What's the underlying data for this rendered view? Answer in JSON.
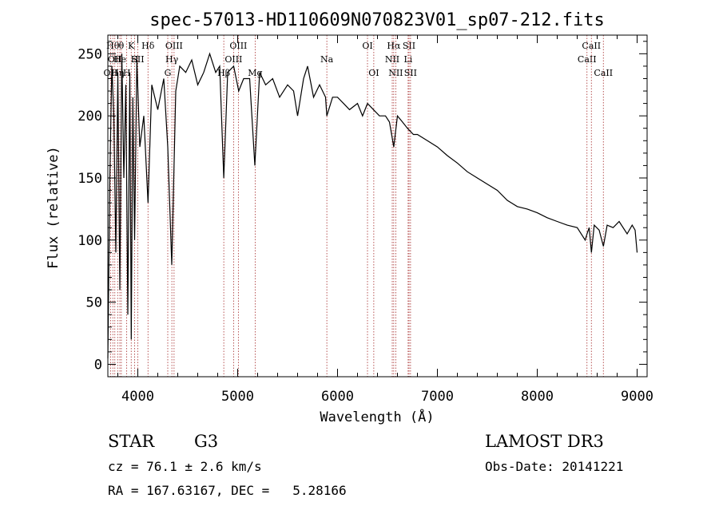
{
  "chart_data": {
    "type": "line",
    "title": "spec-57013-HD110609N070823V01_sp07-212.fits",
    "xlabel": "Wavelength (Å)",
    "ylabel": "Flux (relative)",
    "xlim": [
      3700,
      9100
    ],
    "ylim": [
      -10,
      265
    ],
    "xticks": [
      4000,
      5000,
      6000,
      7000,
      8000,
      9000
    ],
    "yticks": [
      0,
      50,
      100,
      150,
      200,
      250
    ],
    "grid": false,
    "series": [
      {
        "name": "flux",
        "x": [
          3700,
          3720,
          3740,
          3760,
          3780,
          3800,
          3820,
          3840,
          3860,
          3880,
          3900,
          3920,
          3934,
          3950,
          3968,
          3990,
          4020,
          4060,
          4102,
          4140,
          4200,
          4260,
          4300,
          4340,
          4380,
          4420,
          4480,
          4540,
          4600,
          4660,
          4720,
          4780,
          4820,
          4861,
          4900,
          4960,
          5010,
          5060,
          5120,
          5172,
          5220,
          5280,
          5350,
          5420,
          5500,
          5560,
          5600,
          5660,
          5700,
          5760,
          5820,
          5880,
          5893,
          5950,
          6000,
          6060,
          6120,
          6200,
          6250,
          6300,
          6360,
          6420,
          6480,
          6520,
          6563,
          6600,
          6650,
          6700,
          6760,
          6800,
          6900,
          7000,
          7100,
          7200,
          7300,
          7400,
          7500,
          7600,
          7700,
          7800,
          7900,
          8000,
          8100,
          8200,
          8300,
          8400,
          8480,
          8498,
          8520,
          8542,
          8570,
          8620,
          8662,
          8700,
          8760,
          8820,
          8900,
          8950,
          8980,
          9000
        ],
        "y": [
          5,
          150,
          240,
          200,
          90,
          235,
          60,
          250,
          150,
          225,
          40,
          235,
          20,
          215,
          100,
          245,
          175,
          200,
          130,
          225,
          205,
          230,
          175,
          80,
          220,
          240,
          235,
          245,
          225,
          235,
          250,
          235,
          240,
          150,
          235,
          240,
          220,
          230,
          230,
          160,
          235,
          225,
          230,
          215,
          225,
          220,
          200,
          230,
          240,
          215,
          225,
          215,
          200,
          215,
          215,
          210,
          205,
          210,
          200,
          210,
          205,
          200,
          200,
          195,
          175,
          200,
          195,
          190,
          185,
          185,
          180,
          175,
          168,
          162,
          155,
          150,
          145,
          140,
          132,
          127,
          125,
          122,
          118,
          115,
          112,
          110,
          100,
          105,
          110,
          90,
          112,
          108,
          95,
          112,
          110,
          115,
          105,
          112,
          108,
          90
        ]
      }
    ],
    "lines": [
      {
        "wave": 3727,
        "row": 2,
        "label": "OII"
      },
      {
        "wave": 3750,
        "row": 0,
        "label": "Hθ"
      },
      {
        "wave": 3770,
        "row": 1,
        "label": "OII"
      },
      {
        "wave": 3798,
        "row": 2,
        "label": "Hη"
      },
      {
        "wave": 3820,
        "row": 1,
        "label": "He"
      },
      {
        "wave": 3835,
        "row": 0,
        "label": "θ"
      },
      {
        "wave": 3889,
        "row": 2,
        "label": "H"
      },
      {
        "wave": 3934,
        "row": 0,
        "label": "K"
      },
      {
        "wave": 3968,
        "row": 1,
        "label": "H"
      },
      {
        "wave": 4000,
        "row": 1,
        "label": "SII"
      },
      {
        "wave": 4102,
        "row": 0,
        "label": "Hδ"
      },
      {
        "wave": 4300,
        "row": 2,
        "label": "G"
      },
      {
        "wave": 4341,
        "row": 1,
        "label": "Hγ"
      },
      {
        "wave": 4363,
        "row": 0,
        "label": "OIII"
      },
      {
        "wave": 4861,
        "row": 2,
        "label": "Hβ"
      },
      {
        "wave": 4959,
        "row": 1,
        "label": "OIII"
      },
      {
        "wave": 5007,
        "row": 0,
        "label": "OIII"
      },
      {
        "wave": 5175,
        "row": 2,
        "label": "Mg"
      },
      {
        "wave": 5893,
        "row": 1,
        "label": "Na"
      },
      {
        "wave": 6300,
        "row": 0,
        "label": "OI"
      },
      {
        "wave": 6363,
        "row": 2,
        "label": "OI"
      },
      {
        "wave": 6548,
        "row": 1,
        "label": "NII"
      },
      {
        "wave": 6563,
        "row": 0,
        "label": "Hα"
      },
      {
        "wave": 6583,
        "row": 2,
        "label": "NII"
      },
      {
        "wave": 6707,
        "row": 1,
        "label": "Li"
      },
      {
        "wave": 6716,
        "row": 0,
        "label": "SII"
      },
      {
        "wave": 6731,
        "row": 2,
        "label": "SII"
      },
      {
        "wave": 8498,
        "row": 1,
        "label": "CaII"
      },
      {
        "wave": 8542,
        "row": 0,
        "label": "CaII"
      },
      {
        "wave": 8662,
        "row": 2,
        "label": "CaII"
      }
    ]
  },
  "info": {
    "object_class": "STAR",
    "subclass": "G3",
    "survey": "LAMOST DR3",
    "cz": "cz = 76.1 ± 2.6 km/s",
    "obs_date": "Obs-Date: 20141221",
    "coords": "RA = 167.63167, DEC =   5.28166"
  }
}
